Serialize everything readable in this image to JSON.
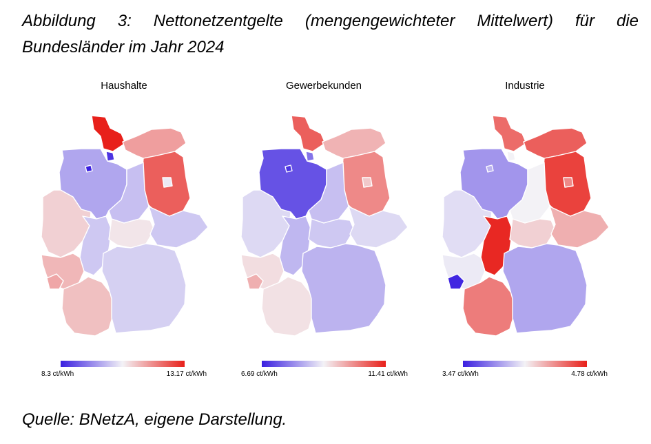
{
  "caption": "Abbildung 3: Nettonetzentgelte (mengengewichteter Mittelwert) für die Bundesländer im Jahr 2024",
  "source": "Quelle: BNetzA, eigene Darstellung.",
  "colors": {
    "low": "#3a1fe0",
    "mid": "#f3f2f6",
    "high": "#e8201a"
  },
  "panels": [
    {
      "title": "Haushalte",
      "legend": {
        "min": "8.3 ct/kWh",
        "max": "13.17 ct/kWh"
      },
      "values": {
        "SH": 1.0,
        "MV": 0.7,
        "HH": 0.05,
        "NI": 0.32,
        "HB": 0.0,
        "BB": 0.85,
        "BE": 0.48,
        "ST": 0.38,
        "NW": 0.58,
        "HE": 0.4,
        "TH": 0.53,
        "SN": 0.4,
        "RP": 0.64,
        "SL": 0.68,
        "BW": 0.62,
        "BY": 0.42
      }
    },
    {
      "title": "Gewerbekunden",
      "legend": {
        "min": "6.69 ct/kWh",
        "max": "11.41 ct/kWh"
      },
      "values": {
        "SH": 0.85,
        "MV": 0.65,
        "HH": 0.2,
        "NI": 0.12,
        "HB": 0.05,
        "BB": 0.75,
        "BE": 0.6,
        "ST": 0.38,
        "NW": 0.44,
        "HE": 0.36,
        "TH": 0.4,
        "SN": 0.44,
        "RP": 0.55,
        "SL": 0.66,
        "BW": 0.54,
        "BY": 0.35
      }
    },
    {
      "title": "Industrie",
      "legend": {
        "min": "3.47 ct/kWh",
        "max": "4.78 ct/kWh"
      },
      "values": {
        "SH": 0.82,
        "MV": 0.85,
        "HH": 0.5,
        "NI": 0.28,
        "HB": 0.35,
        "BB": 0.92,
        "BE": 0.75,
        "ST": 0.5,
        "NW": 0.45,
        "HE": 0.98,
        "TH": 0.58,
        "SN": 0.66,
        "RP": 0.48,
        "SL": 0.02,
        "BW": 0.78,
        "BY": 0.32
      }
    }
  ]
}
